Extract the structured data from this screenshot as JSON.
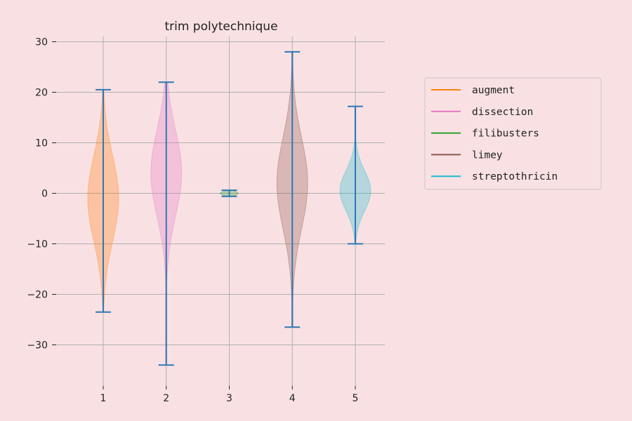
{
  "chart_data": {
    "type": "violin",
    "title": "trim polytechnique",
    "xlabel": "",
    "ylabel": "",
    "categories": [
      "1",
      "2",
      "3",
      "4",
      "5"
    ],
    "x_ticks": [
      "1",
      "2",
      "3",
      "4",
      "5"
    ],
    "y_ticks": [
      "30",
      "20",
      "10",
      "0",
      "−10",
      "−20",
      "−30"
    ],
    "ylim": [
      -36.5,
      31
    ],
    "grid": true,
    "legend_position": "right",
    "colors": {
      "background": "#f9e1e3",
      "extrema_lines": "#2f78b4",
      "grid": "#b0b0b0"
    },
    "series": [
      {
        "name": "augment",
        "color": "#ff7f0e",
        "position": 1,
        "min": -23.5,
        "max": 20.5,
        "center": -1,
        "spread": 8.5
      },
      {
        "name": "dissection",
        "color": "#e377c2",
        "position": 2,
        "min": -34.0,
        "max": 22.0,
        "center": 4,
        "spread": 8.5
      },
      {
        "name": "filibusters",
        "color": "#2ca02c",
        "position": 3,
        "min": -0.6,
        "max": 0.6,
        "center": 0,
        "spread": 0.4
      },
      {
        "name": "limey",
        "color": "#8c564b",
        "position": 4,
        "min": -26.5,
        "max": 28.0,
        "center": 2,
        "spread": 9.0
      },
      {
        "name": "streptothricin",
        "color": "#17becf",
        "position": 5,
        "min": -10.0,
        "max": 17.2,
        "center": 0.5,
        "spread": 4.0
      }
    ]
  }
}
